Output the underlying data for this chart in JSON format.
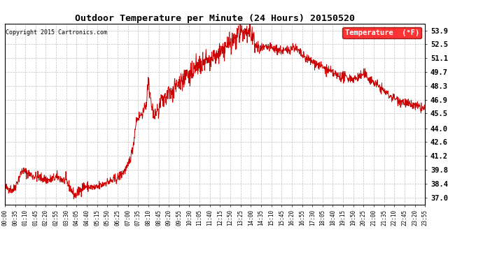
{
  "title": "Outdoor Temperature per Minute (24 Hours) 20150520",
  "copyright_text": "Copyright 2015 Cartronics.com",
  "legend_label": "Temperature  (°F)",
  "line_color": "#cc0000",
  "background_color": "#ffffff",
  "grid_color": "#bbbbbb",
  "yticks": [
    37.0,
    38.4,
    39.8,
    41.2,
    42.6,
    44.0,
    45.5,
    46.9,
    48.3,
    49.7,
    51.1,
    52.5,
    53.9
  ],
  "ymin": 36.3,
  "ymax": 54.6,
  "xtick_labels": [
    "00:00",
    "00:35",
    "01:10",
    "01:45",
    "02:20",
    "02:55",
    "03:30",
    "04:05",
    "04:40",
    "05:15",
    "05:50",
    "06:25",
    "07:00",
    "07:35",
    "08:10",
    "08:45",
    "09:20",
    "09:55",
    "10:30",
    "11:05",
    "11:40",
    "12:15",
    "12:50",
    "13:25",
    "14:00",
    "14:35",
    "15:10",
    "15:45",
    "16:20",
    "16:55",
    "17:30",
    "18:05",
    "18:40",
    "19:15",
    "19:50",
    "20:25",
    "21:00",
    "21:35",
    "22:10",
    "22:45",
    "23:20",
    "23:55"
  ]
}
